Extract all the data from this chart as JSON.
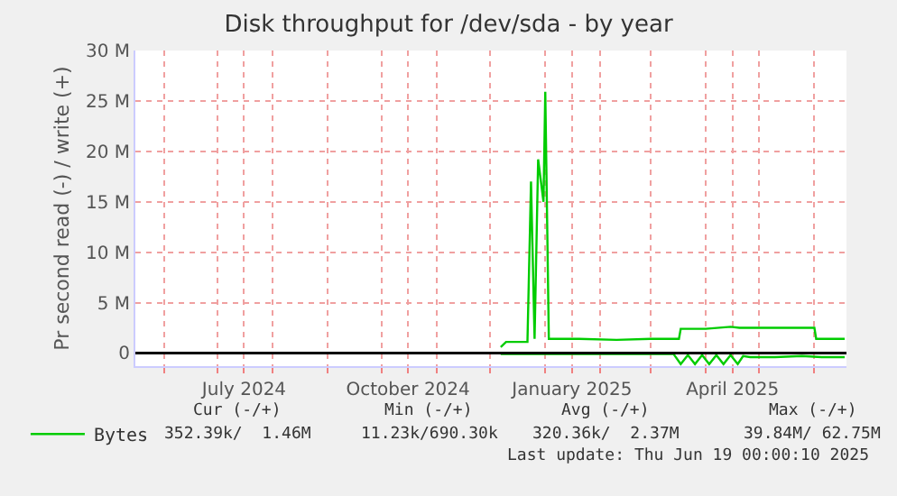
{
  "chart_data": {
    "type": "line",
    "title": "Disk throughput for /dev/sda - by year",
    "ylabel": "Pr second read (-) / write (+)",
    "xlim": [
      "2024-05-16",
      "2025-06-19"
    ],
    "xticks": [
      {
        "value": "2024-06-01",
        "label": null
      },
      {
        "value": "2024-07-01",
        "label": null
      },
      {
        "value": "2024-07-16",
        "label": "July 2024"
      },
      {
        "value": "2024-08-01",
        "label": null
      },
      {
        "value": "2024-09-01",
        "label": null
      },
      {
        "value": "2024-10-01",
        "label": null
      },
      {
        "value": "2024-10-16",
        "label": "October 2024"
      },
      {
        "value": "2024-11-01",
        "label": null
      },
      {
        "value": "2024-12-01",
        "label": null
      },
      {
        "value": "2025-01-01",
        "label": null
      },
      {
        "value": "2025-01-16",
        "label": "January 2025"
      },
      {
        "value": "2025-02-01",
        "label": null
      },
      {
        "value": "2025-03-01",
        "label": null
      },
      {
        "value": "2025-04-01",
        "label": null
      },
      {
        "value": "2025-04-16",
        "label": "April 2025"
      },
      {
        "value": "2025-05-01",
        "label": null
      },
      {
        "value": "2025-06-01",
        "label": null
      }
    ],
    "ylim": [
      -1300000,
      30000000
    ],
    "yticks": [
      {
        "value": 0,
        "label": "0"
      },
      {
        "value": 5000000,
        "label": "5 M"
      },
      {
        "value": 10000000,
        "label": "10 M"
      },
      {
        "value": 15000000,
        "label": "15 M"
      },
      {
        "value": 20000000,
        "label": "20 M"
      },
      {
        "value": 25000000,
        "label": "25 M"
      },
      {
        "value": 30000000,
        "label": "30 M"
      }
    ],
    "grid": true,
    "legend": "bottom left",
    "marker": "none",
    "line_style": "solid",
    "series": [
      {
        "name": "Bytes",
        "color": "#00cc00",
        "x": [
          "2024-12-07",
          "2024-12-10",
          "2024-12-22",
          "2024-12-24",
          "2024-12-26",
          "2024-12-28",
          "2024-12-31",
          "2025-01-01",
          "2025-01-03",
          "2025-01-20",
          "2025-02-10",
          "2025-03-01",
          "2025-03-17",
          "2025-03-18",
          "2025-04-01",
          "2025-04-15",
          "2025-04-20",
          "2025-05-10",
          "2025-06-01",
          "2025-06-02",
          "2025-06-18"
        ],
        "values": [
          600000,
          1100000,
          1100000,
          17000000,
          1400000,
          19200000,
          15000000,
          25900000,
          1400000,
          1400000,
          1300000,
          1400000,
          1400000,
          2400000,
          2400000,
          2600000,
          2500000,
          2500000,
          2500000,
          1400000,
          1400000
        ]
      },
      {
        "color": "#00cc00",
        "x": [
          "2024-12-07",
          "2025-03-14",
          "2025-03-18",
          "2025-03-22",
          "2025-03-26",
          "2025-03-30",
          "2025-04-03",
          "2025-04-07",
          "2025-04-11",
          "2025-04-15",
          "2025-04-19",
          "2025-04-22",
          "2025-04-26",
          "2025-05-10",
          "2025-05-25",
          "2025-06-05",
          "2025-06-18"
        ],
        "values": [
          -100000,
          -100000,
          -1100000,
          -200000,
          -1100000,
          -200000,
          -1100000,
          -200000,
          -1100000,
          -200000,
          -1100000,
          -300000,
          -400000,
          -400000,
          -300000,
          -400000,
          -400000
        ]
      }
    ],
    "ref_lines": [
      {
        "axis": "y",
        "value": 0,
        "color": "#000000"
      }
    ],
    "annotations": [
      "Cur (-/+)",
      "Min (-/+)",
      "Avg (-/+)",
      "Max (-/+)",
      "352.39k/  1.46M",
      "11.23k/690.30k",
      "320.36k/  2.37M",
      "39.84M/ 62.75M",
      "Last update: Thu Jun 19 00:00:10 2025"
    ]
  }
}
